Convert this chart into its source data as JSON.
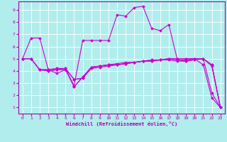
{
  "title": "",
  "xlabel": "Windchill (Refroidissement éolien,°C)",
  "background_color": "#b2eded",
  "grid_color": "#ffffff",
  "line_color": "#cc00cc",
  "xlim": [
    -0.5,
    23.5
  ],
  "ylim": [
    0.5,
    9.7
  ],
  "xticks": [
    0,
    1,
    2,
    3,
    4,
    5,
    6,
    7,
    8,
    9,
    10,
    11,
    12,
    13,
    14,
    15,
    16,
    17,
    18,
    19,
    20,
    21,
    22,
    23
  ],
  "yticks": [
    1,
    2,
    3,
    4,
    5,
    6,
    7,
    8,
    9
  ],
  "series": [
    {
      "x": [
        0,
        1,
        2,
        3,
        4,
        5,
        6,
        7,
        8,
        9,
        10,
        11,
        12,
        13,
        14,
        15,
        16,
        17,
        18,
        19,
        20,
        21,
        22,
        23
      ],
      "y": [
        5,
        6.7,
        6.7,
        4.1,
        3.8,
        4.1,
        2.8,
        6.5,
        6.5,
        6.5,
        6.5,
        8.6,
        8.5,
        9.2,
        9.3,
        7.5,
        7.3,
        7.8,
        4.9,
        4.8,
        5.0,
        4.5,
        1.8,
        1.0
      ]
    },
    {
      "x": [
        0,
        1,
        2,
        3,
        4,
        5,
        6,
        7,
        8,
        9,
        10,
        11,
        12,
        13,
        14,
        15,
        16,
        17,
        18,
        19,
        20,
        21,
        22,
        23
      ],
      "y": [
        5,
        5,
        4.1,
        4.1,
        4.2,
        4.2,
        3.3,
        3.4,
        4.3,
        4.4,
        4.5,
        4.5,
        4.6,
        4.7,
        4.8,
        4.8,
        4.9,
        5.0,
        4.9,
        4.9,
        5.0,
        5.0,
        4.4,
        1.0
      ]
    },
    {
      "x": [
        0,
        1,
        2,
        3,
        4,
        5,
        6,
        7,
        8,
        9,
        10,
        11,
        12,
        13,
        14,
        15,
        16,
        17,
        18,
        19,
        20,
        21,
        22,
        23
      ],
      "y": [
        5,
        5,
        4.1,
        4.0,
        4.1,
        4.1,
        2.7,
        3.5,
        4.3,
        4.4,
        4.5,
        4.6,
        4.7,
        4.7,
        4.8,
        4.9,
        4.9,
        5.0,
        5.0,
        5.0,
        5.0,
        5.0,
        4.5,
        1.0
      ]
    },
    {
      "x": [
        0,
        1,
        2,
        3,
        4,
        5,
        6,
        7,
        8,
        9,
        10,
        11,
        12,
        13,
        14,
        15,
        16,
        17,
        18,
        19,
        20,
        21,
        22,
        23
      ],
      "y": [
        5,
        5,
        4.1,
        4.0,
        4.1,
        4.2,
        2.7,
        3.5,
        4.3,
        4.4,
        4.5,
        4.5,
        4.6,
        4.7,
        4.8,
        4.9,
        4.9,
        5.0,
        5.0,
        5.0,
        5.0,
        5.0,
        2.2,
        1.0
      ]
    },
    {
      "x": [
        2,
        3,
        4,
        5,
        6,
        7,
        8,
        9,
        10,
        11,
        12,
        13,
        14,
        15,
        16,
        17,
        18,
        19,
        20,
        21,
        22,
        23
      ],
      "y": [
        4.1,
        4.1,
        4.2,
        4.2,
        3.3,
        3.4,
        4.2,
        4.3,
        4.4,
        4.5,
        4.6,
        4.7,
        4.8,
        4.8,
        4.9,
        4.9,
        4.8,
        4.8,
        4.9,
        5.0,
        4.5,
        1.0
      ]
    }
  ]
}
